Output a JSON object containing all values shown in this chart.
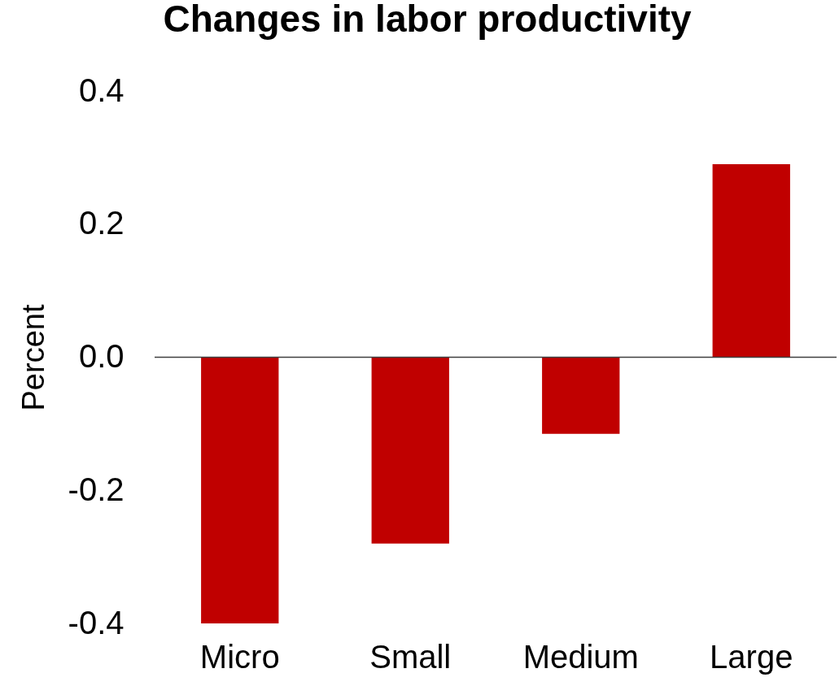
{
  "chart_data": {
    "type": "bar",
    "title": "Changes in labor productivity",
    "ylabel": "Percent",
    "categories": [
      "Micro",
      "Small",
      "Medium",
      "Large"
    ],
    "values": [
      -0.4,
      -0.28,
      -0.115,
      0.29
    ],
    "color": "#c00000",
    "ylim": [
      -0.4,
      0.4
    ],
    "yticks": [
      {
        "value": -0.4,
        "label": "-0.4"
      },
      {
        "value": -0.2,
        "label": "-0.2"
      },
      {
        "value": 0,
        "label": "0.0"
      },
      {
        "value": 0.2,
        "label": "0.2"
      },
      {
        "value": 0.4,
        "label": "0.4"
      }
    ],
    "ref_lines": [
      {
        "axis": "y",
        "value": 0,
        "color": "#404040"
      }
    ],
    "grid": false
  }
}
